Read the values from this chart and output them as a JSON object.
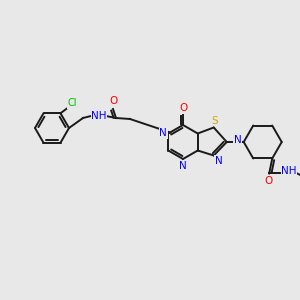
{
  "bg_color": "#e8e8e8",
  "bond_color": "#1a1a1a",
  "bond_width": 1.4,
  "atom_colors": {
    "N": "#0000ff",
    "O": "#ff0000",
    "S": "#ccaa00",
    "Cl": "#00bb00",
    "H": "#7aa0aa",
    "C": "#1a1a1a"
  },
  "figsize": [
    3.0,
    3.0
  ],
  "dpi": 100
}
